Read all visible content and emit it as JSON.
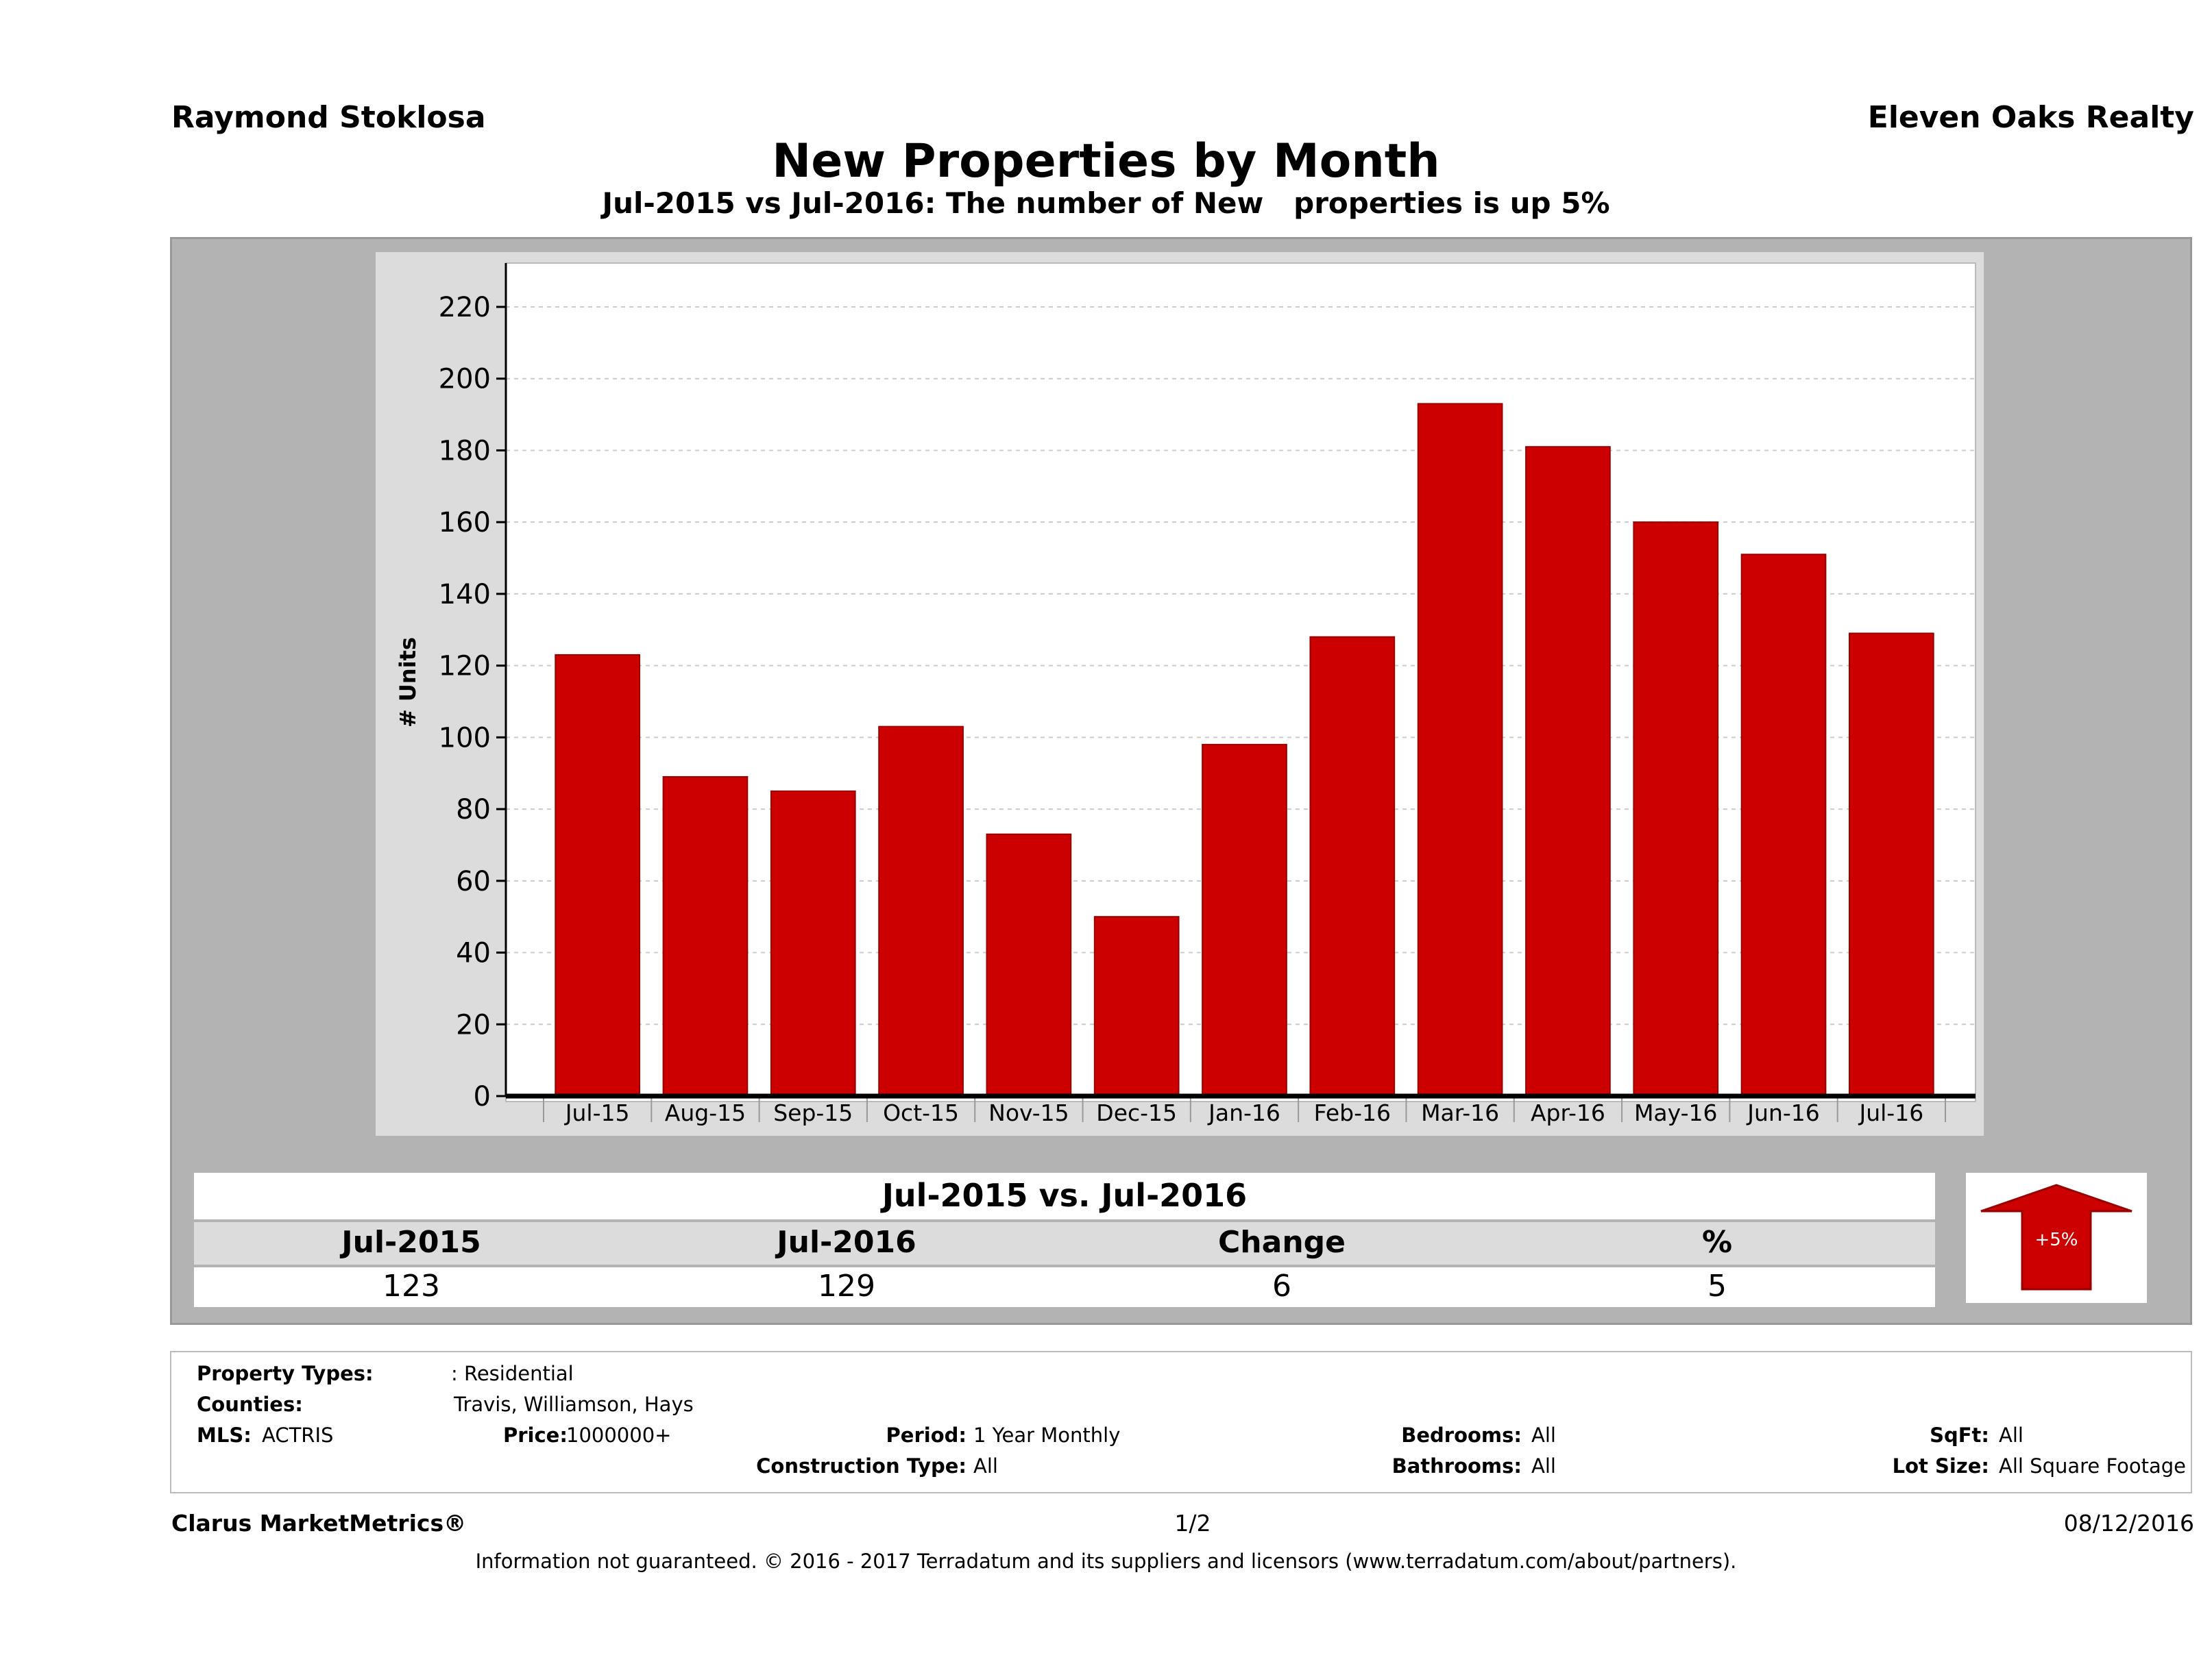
{
  "header": {
    "agent_name": "Raymond Stoklosa",
    "brokerage": "Eleven Oaks Realty",
    "title": "New Properties by Month",
    "subtitle": "Jul-2015 vs Jul-2016: The number of New   properties is up 5%"
  },
  "chart_data": {
    "type": "bar",
    "title": "New Properties by Month",
    "ylabel": "# Units",
    "xlabel": "",
    "ylim": [
      0,
      220
    ],
    "yticks": [
      "0",
      "20",
      "40",
      "60",
      "80",
      "100",
      "120",
      "140",
      "160",
      "180",
      "200",
      "220"
    ],
    "grid": true,
    "categories": [
      "Jul-15",
      "Aug-15",
      "Sep-15",
      "Oct-15",
      "Nov-15",
      "Dec-15",
      "Jan-16",
      "Feb-16",
      "Mar-16",
      "Apr-16",
      "May-16",
      "Jun-16",
      "Jul-16"
    ],
    "values": [
      123,
      89,
      85,
      103,
      73,
      50,
      98,
      128,
      193,
      181,
      160,
      151,
      129
    ],
    "bar_color": "#cc0000"
  },
  "summary": {
    "title": "Jul-2015 vs. Jul-2016",
    "headers": [
      "Jul-2015",
      "Jul-2016",
      "Change",
      "%"
    ],
    "values": [
      "123",
      "129",
      "6",
      "5"
    ],
    "badge_text": "+5%",
    "badge_direction": "up-arrow-icon",
    "badge_color": "#cc0000"
  },
  "filters": {
    "property_types_label": "Property Types:",
    "property_types_value": ": Residential",
    "counties_label": "Counties:",
    "counties_value": "Travis, Williamson, Hays",
    "mls_label": "MLS:",
    "mls_value": "ACTRIS",
    "price_label": "Price:",
    "price_value": "1000000+",
    "period_label": "Period:",
    "period_value": "1 Year Monthly",
    "construction_label": "Construction Type:",
    "construction_value": "All",
    "bedrooms_label": "Bedrooms:",
    "bedrooms_value": "All",
    "bathrooms_label": "Bathrooms:",
    "bathrooms_value": "All",
    "sqft_label": "SqFt:",
    "sqft_value": "All",
    "lotsize_label": "Lot Size:",
    "lotsize_value": "All Square Footage"
  },
  "footer": {
    "product": "Clarus MarketMetrics®",
    "page": "1/2",
    "date": "08/12/2016",
    "disclaimer": "Information not guaranteed. © 2016 - 2017 Terradatum and its suppliers and licensors (www.terradatum.com/about/partners)."
  }
}
